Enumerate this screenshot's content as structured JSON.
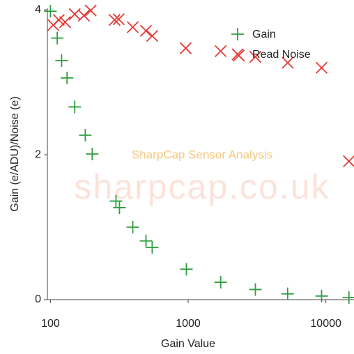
{
  "chart_data": {
    "type": "scatter",
    "xlabel": "Gain Value",
    "ylabel": "Gain (e/ADU)/Noise (e)",
    "annotations": [
      "SharpCap Sensor Analysis",
      "sharpcap.co.uk"
    ],
    "xscale": "log",
    "xlim": [
      95,
      16000
    ],
    "xticks": [
      100,
      1000,
      10000
    ],
    "ylim": [
      0,
      4.02
    ],
    "yticks": [
      0,
      2,
      4
    ],
    "grid": false,
    "legend": "upper right",
    "series": [
      {
        "name": "Gain",
        "color": "#2e9e3e",
        "marker": "plus",
        "x": [
          100,
          112,
          120.5,
          132,
          150,
          179,
          201,
          299,
          317,
          396,
          494,
          548,
          971,
          1722,
          3078,
          5276,
          9306,
          14700
        ],
        "values": [
          3.98,
          3.61,
          3.3,
          3.06,
          2.66,
          2.27,
          2.01,
          1.36,
          1.27,
          1.0,
          0.81,
          0.72,
          0.42,
          0.24,
          0.14,
          0.08,
          0.05,
          0.03
        ]
      },
      {
        "name": "Read Noise",
        "color": "#e53935",
        "marker": "x",
        "x": [
          104.8,
          115,
          127.7,
          150,
          175,
          196,
          292,
          313,
          396,
          494,
          548,
          960,
          1722,
          2330,
          3078,
          5276,
          9306,
          14700
        ],
        "values": [
          3.79,
          3.86,
          3.83,
          3.94,
          3.92,
          3.99,
          3.86,
          3.87,
          3.76,
          3.71,
          3.64,
          3.47,
          3.43,
          3.37,
          3.35,
          3.27,
          3.2,
          1.91
        ]
      }
    ]
  }
}
